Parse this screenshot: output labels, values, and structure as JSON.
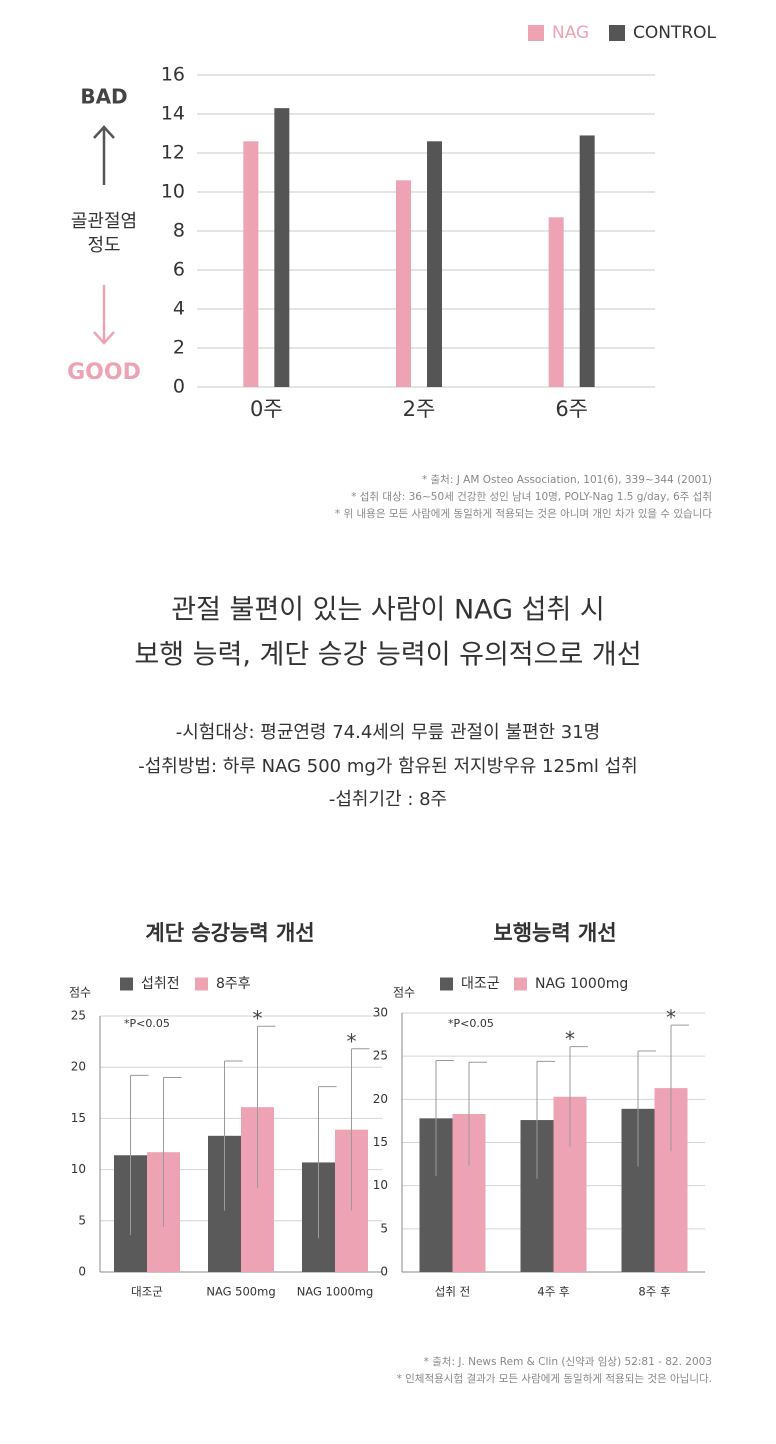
{
  "chart_data": [
    {
      "type": "bar",
      "categories": [
        "0주",
        "2주",
        "6주"
      ],
      "series": [
        {
          "name": "NAG",
          "color": "#eda3b3",
          "values": [
            12.6,
            10.6,
            8.7
          ]
        },
        {
          "name": "CONTROL",
          "color": "#555555",
          "values": [
            14.3,
            12.6,
            12.9
          ]
        }
      ],
      "ylim": [
        0,
        16
      ],
      "yticks": [
        0,
        2,
        4,
        6,
        8,
        10,
        12,
        14,
        16
      ],
      "grid": true,
      "legend": "top-right",
      "y_top_label": "BAD",
      "ylabel": [
        "골관절염",
        "정도"
      ],
      "y_bottom_label": "GOOD"
    },
    {
      "type": "bar",
      "title": "계단 승강능력 개선",
      "ylabel": "점수",
      "annotation": "*P<0.05",
      "categories": [
        "대조군",
        "NAG 500mg",
        "NAG 1000mg"
      ],
      "series": [
        {
          "name": "섭취전",
          "color": "#5a5a5a",
          "values": [
            11.4,
            13.3,
            10.7
          ],
          "errors": [
            7.8,
            7.3,
            7.4
          ]
        },
        {
          "name": "8주후",
          "color": "#eda3b3",
          "values": [
            11.7,
            16.1,
            13.9
          ],
          "errors": [
            7.3,
            7.9,
            7.9
          ],
          "markers": [
            null,
            "*",
            "*"
          ]
        }
      ],
      "ylim": [
        0,
        25
      ],
      "yticks": [
        0,
        5,
        10,
        15,
        20,
        25
      ],
      "grid": true,
      "legend": "top-left"
    },
    {
      "type": "bar",
      "title": "보행능력 개선",
      "ylabel": "점수",
      "annotation": "*P<0.05",
      "categories": [
        "섭취 전",
        "4주 후",
        "8주 후"
      ],
      "series": [
        {
          "name": "대조군",
          "color": "#5a5a5a",
          "values": [
            17.8,
            17.6,
            18.9
          ],
          "errors": [
            6.7,
            6.8,
            6.7
          ]
        },
        {
          "name": "NAG 1000mg",
          "color": "#eda3b3",
          "values": [
            18.3,
            20.3,
            21.3
          ],
          "errors": [
            6.0,
            5.8,
            7.3
          ],
          "markers": [
            null,
            "*",
            "*"
          ]
        }
      ],
      "ylim": [
        0,
        30
      ],
      "yticks": [
        0,
        5,
        10,
        15,
        20,
        25,
        30
      ],
      "grid": true,
      "legend": "top-left"
    }
  ],
  "notes_top": [
    "* 출처: J AM Osteo Association,  101(6), 339~344 (2001)",
    "* 섭취 대상: 36~50세 건강한 성인 남녀 10명, POLY-Nag 1.5 g/day, 6주 섭취",
    "* 위 내용은 모든 사람에게 동일하게 적용되는 것은 아니며 개인 차가 있을 수 있습니다"
  ],
  "headline": [
    "관절 불편이 있는 사람이 NAG 섭취 시",
    "보행 능력, 계단 승강 능력이 유의적으로 개선"
  ],
  "details": [
    "-시험대상: 평균연령 74.4세의 무릎 관절이 불편한 31명",
    "-섭취방법: 하루 NAG 500 mg가 함유된 저지방우유 125ml 섭취",
    "-섭취기간 : 8주"
  ],
  "notes_bottom": [
    "* 출처: J. News Rem & Clin (신약과 임상) 52:81 - 82. 2003",
    "* 인체적용시험 결과가 모든 사람에게 동일하게 적용되는 것은 아닙니다."
  ]
}
